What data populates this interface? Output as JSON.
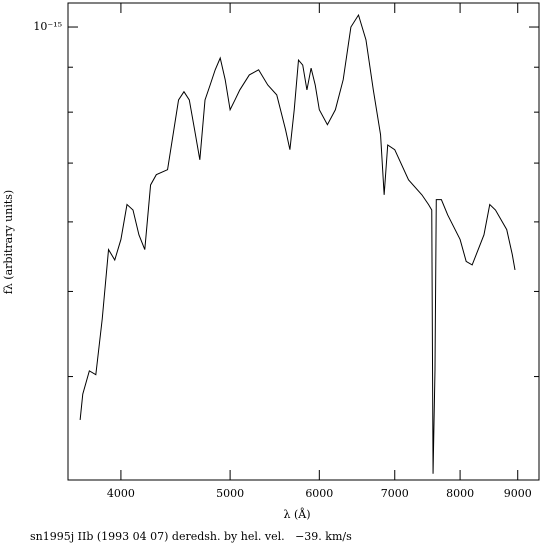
{
  "chart_data": {
    "type": "line",
    "x_label": "λ (Å)",
    "y_label": "fλ (arbitrary units)",
    "caption": "sn1995j IIb (1993 04 07) deredsh. by hel. vel.   −39. km/s",
    "x_log": true,
    "y_log": true,
    "xlim": [
      3590,
      9400
    ],
    "ylim": [
      3.05e-16,
      1.065e-15
    ],
    "xticks": [
      4000,
      5000,
      6000,
      7000,
      8000,
      9000
    ],
    "yticks": [
      {
        "value": 1e-15,
        "label": "10⁻¹⁵"
      }
    ],
    "yminor_ticks": [
      9e-16,
      8e-16,
      7e-16,
      6e-16,
      5e-16,
      4e-16
    ],
    "series": [
      {
        "color": "#000000",
        "x": [
          3680,
          3700,
          3750,
          3800,
          3850,
          3900,
          3950,
          4000,
          4050,
          4100,
          4150,
          4200,
          4250,
          4300,
          4400,
          4500,
          4550,
          4600,
          4650,
          4700,
          4750,
          4800,
          4850,
          4900,
          4950,
          5000,
          5050,
          5100,
          5200,
          5300,
          5400,
          5500,
          5600,
          5650,
          5700,
          5750,
          5800,
          5850,
          5900,
          5950,
          6000,
          6100,
          6200,
          6300,
          6400,
          6500,
          6600,
          6700,
          6800,
          6850,
          6900,
          7000,
          7200,
          7400,
          7500,
          7550,
          7570,
          7600,
          7620,
          7700,
          7800,
          8000,
          8100,
          8200,
          8400,
          8500,
          8600,
          8800,
          8900,
          8950
        ],
        "values": [
          3.57e-16,
          3.82e-16,
          4.06e-16,
          4.02e-16,
          4.65e-16,
          5.58e-16,
          5.43e-16,
          5.73e-16,
          6.28e-16,
          6.19e-16,
          5.8e-16,
          5.58e-16,
          6.61e-16,
          6.79e-16,
          6.88e-16,
          8.26e-16,
          8.44e-16,
          8.26e-16,
          7.64e-16,
          7.06e-16,
          8.26e-16,
          8.59e-16,
          8.94e-16,
          9.22e-16,
          8.71e-16,
          8.05e-16,
          8.26e-16,
          8.48e-16,
          8.82e-16,
          8.94e-16,
          8.59e-16,
          8.37e-16,
          7.64e-16,
          7.25e-16,
          8.05e-16,
          9.17e-16,
          9.05e-16,
          8.48e-16,
          8.98e-16,
          8.59e-16,
          8.05e-16,
          7.74e-16,
          8.05e-16,
          8.71e-16,
          1e-15,
          1.032e-15,
          9.67e-16,
          8.48e-16,
          7.54e-16,
          6.44e-16,
          7.34e-16,
          7.25e-16,
          6.7e-16,
          6.44e-16,
          6.28e-16,
          6.19e-16,
          3.1e-16,
          4.07e-16,
          6.36e-16,
          6.36e-16,
          6.11e-16,
          5.73e-16,
          5.41e-16,
          5.36e-16,
          5.8e-16,
          6.28e-16,
          6.19e-16,
          5.88e-16,
          5.51e-16,
          5.29e-16
        ]
      }
    ]
  }
}
